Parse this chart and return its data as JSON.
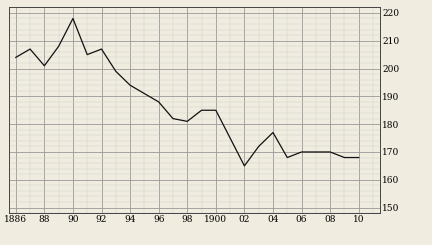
{
  "years": [
    1886,
    1887,
    1888,
    1889,
    1890,
    1891,
    1892,
    1893,
    1894,
    1895,
    1896,
    1897,
    1898,
    1899,
    1900,
    1901,
    1902,
    1903,
    1904,
    1905,
    1906,
    1907,
    1908,
    1909,
    1910
  ],
  "values": [
    204,
    207,
    201,
    208,
    218,
    205,
    207,
    199,
    194,
    191,
    188,
    182,
    181,
    185,
    185,
    175,
    165,
    172,
    177,
    168,
    170,
    170,
    170,
    168,
    168
  ],
  "xlim": [
    1885.5,
    1911.5
  ],
  "ylim": [
    148,
    222
  ],
  "yticks": [
    150,
    160,
    170,
    180,
    190,
    200,
    210,
    220
  ],
  "xtick_labels": [
    "1886",
    "88",
    "90",
    "92",
    "94",
    "96",
    "98",
    "1900",
    "02",
    "04",
    "06",
    "08",
    "10"
  ],
  "xtick_positions": [
    1886,
    1888,
    1890,
    1892,
    1894,
    1896,
    1898,
    1900,
    1902,
    1904,
    1906,
    1908,
    1910
  ],
  "line_color": "#111111",
  "bg_color": "#f0ece0",
  "grid_major_color": "#999999",
  "grid_minor_color": "#cccccc",
  "figsize": [
    4.32,
    2.45
  ],
  "dpi": 100
}
